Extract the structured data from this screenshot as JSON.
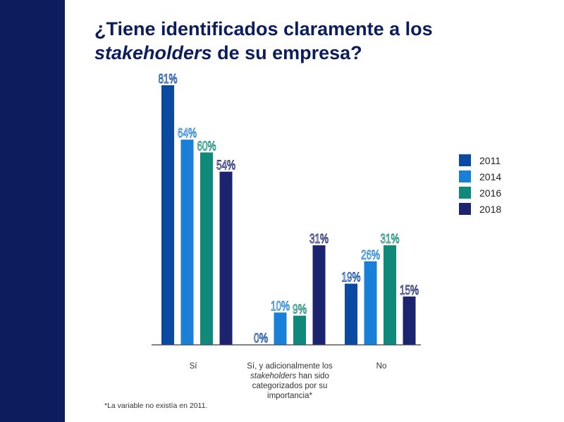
{
  "slide": {
    "title_part1": "¿Tiene identificados claramente a los",
    "title_part2_italic": "stakeholders",
    "title_part3": " de su empresa?",
    "footnote": "*La variable no existía en 2011."
  },
  "chart_data": {
    "type": "bar",
    "title": "¿Tiene identificados claramente a los stakeholders de su empresa?",
    "categories": [
      "Sí",
      "Sí, y adicionalmente los stakeholders han sido categorizados por su importancia*",
      "No"
    ],
    "series": [
      {
        "name": "2011",
        "color": "#0b4aa2",
        "values": [
          81,
          0,
          19
        ]
      },
      {
        "name": "2014",
        "color": "#1a7fd6",
        "values": [
          64,
          10,
          26
        ]
      },
      {
        "name": "2016",
        "color": "#11897a",
        "values": [
          60,
          9,
          31
        ]
      },
      {
        "name": "2018",
        "color": "#1c2470",
        "values": [
          54,
          31,
          15
        ]
      }
    ],
    "value_suffix": "%",
    "ylim": [
      0,
      81
    ],
    "legend_position": "right",
    "grid": false
  },
  "x_labels": {
    "cat1": "Sí",
    "cat2_line1_pre": "Sí, y adicionalmente los",
    "cat2_line2_italic": "stakeholders",
    "cat2_line2_post": " han sido",
    "cat2_line3": "categorizados por su",
    "cat2_line4": "importancia*",
    "cat3": "No"
  }
}
